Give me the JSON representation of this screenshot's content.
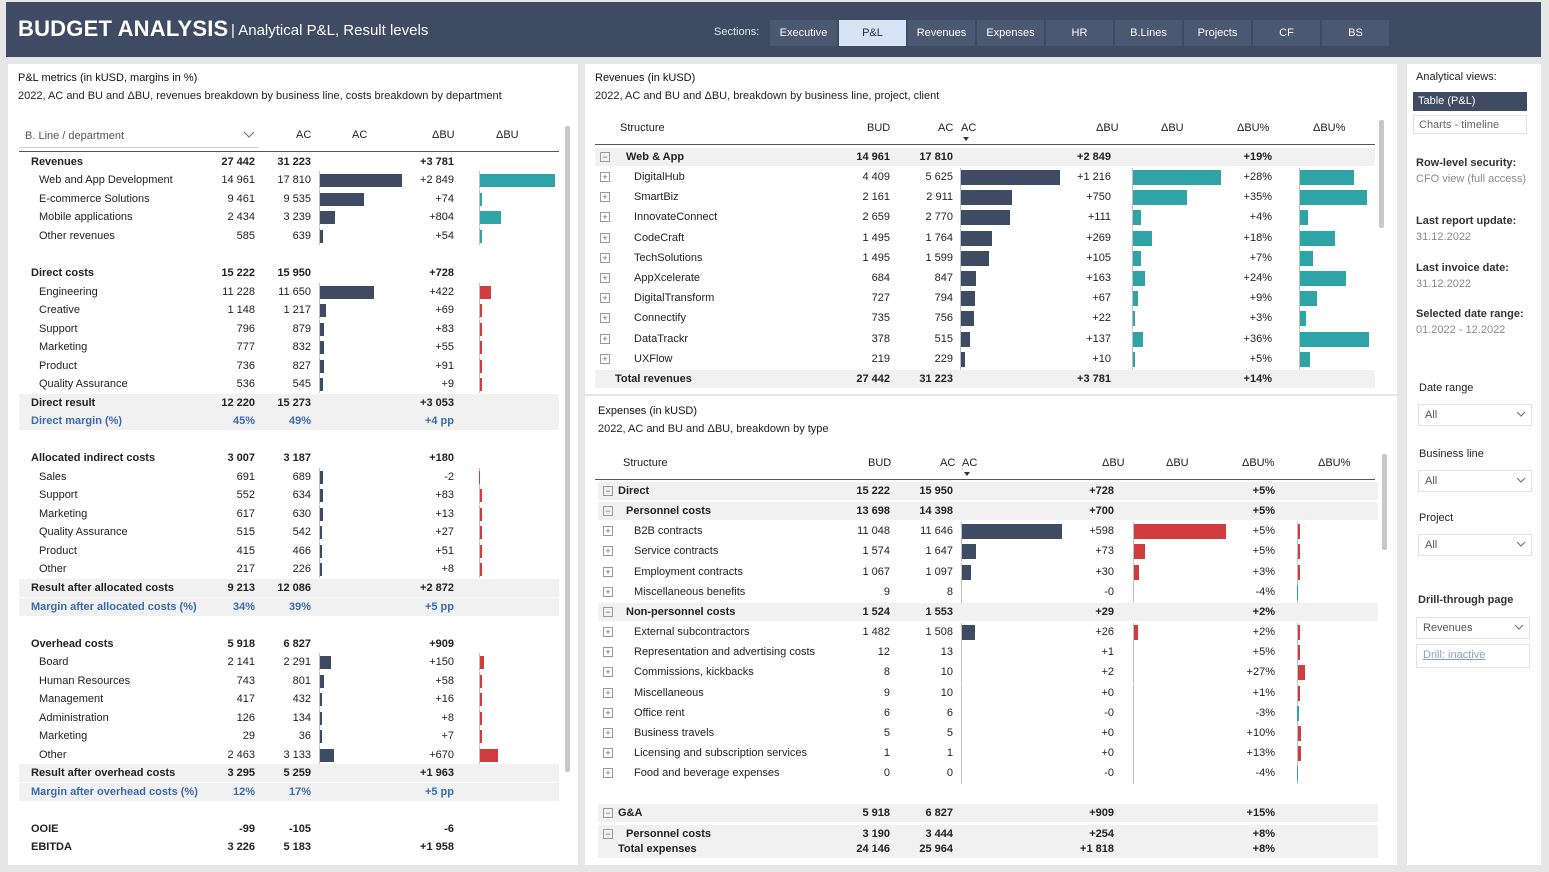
{
  "header": {
    "title": "BUDGET ANALYSIS",
    "subtitle": "| Analytical P&L, Result levels",
    "sections_label": "Sections:",
    "tabs": [
      "Executive",
      "P&L",
      "Revenues",
      "Expenses",
      "HR",
      "B.Lines",
      "Projects",
      "CF",
      "BS"
    ],
    "active_tab": "P&L"
  },
  "colors": {
    "header_bg": "#3e4b62",
    "bar_dark": "#3e4b62",
    "teal": "#2ea4a7",
    "red": "#d13d3d",
    "blue_text": "#3a6bb0"
  },
  "pl": {
    "title": "P&L metrics (in kUSD, margins in %)",
    "subtitle": "2022, AC and BU and ΔBU, revenues breakdown by business line, costs breakdown by department",
    "filter_label": "B. Line / department",
    "col_ac": "AC",
    "col_ac2": "AC",
    "col_dbu": "ΔBU",
    "col_dbu2": "ΔBU",
    "rows": [
      {
        "label": "Revenues",
        "bu": "27 442",
        "ac": "31 223",
        "d": "+3 781",
        "type": "bold"
      },
      {
        "label": "Web and App Development",
        "bu": "14 961",
        "ac": "17 810",
        "d": "+2 849",
        "acv": 17810,
        "dv": 2849,
        "pos": "good"
      },
      {
        "label": "E-commerce Solutions",
        "bu": "9 461",
        "ac": "9 535",
        "d": "+74",
        "acv": 9535,
        "dv": 74,
        "pos": "good"
      },
      {
        "label": "Mobile applications",
        "bu": "2 434",
        "ac": "3 239",
        "d": "+804",
        "acv": 3239,
        "dv": 804,
        "pos": "good"
      },
      {
        "label": "Other revenues",
        "bu": "585",
        "ac": "639",
        "d": "+54",
        "acv": 639,
        "dv": 54,
        "pos": "good"
      },
      {
        "label": "Direct costs",
        "bu": "15 222",
        "ac": "15 950",
        "d": "+728",
        "type": "bold"
      },
      {
        "label": "Engineering",
        "bu": "11 228",
        "ac": "11 650",
        "d": "+422",
        "acv": 11650,
        "dv": 422,
        "pos": "bad"
      },
      {
        "label": "Creative",
        "bu": "1 148",
        "ac": "1 217",
        "d": "+69",
        "acv": 1217,
        "dv": 69,
        "pos": "bad"
      },
      {
        "label": "Support",
        "bu": "796",
        "ac": "879",
        "d": "+83",
        "acv": 879,
        "dv": 83,
        "pos": "bad"
      },
      {
        "label": "Marketing",
        "bu": "777",
        "ac": "832",
        "d": "+55",
        "acv": 832,
        "dv": 55,
        "pos": "bad"
      },
      {
        "label": "Product",
        "bu": "736",
        "ac": "827",
        "d": "+91",
        "acv": 827,
        "dv": 91,
        "pos": "bad"
      },
      {
        "label": "Quality Assurance",
        "bu": "536",
        "ac": "545",
        "d": "+9",
        "acv": 545,
        "dv": 9,
        "pos": "bad"
      },
      {
        "label": "Direct result",
        "bu": "12 220",
        "ac": "15 273",
        "d": "+3 053",
        "type": "result"
      },
      {
        "label": "Direct margin (%)",
        "bu": "45%",
        "ac": "49%",
        "d": "+4 pp",
        "type": "margin"
      },
      {
        "label": "Allocated indirect costs",
        "bu": "3 007",
        "ac": "3 187",
        "d": "+180",
        "type": "bold"
      },
      {
        "label": "Sales",
        "bu": "691",
        "ac": "689",
        "d": "-2",
        "acv": 689,
        "dv": -2,
        "pos": "bad"
      },
      {
        "label": "Support",
        "bu": "552",
        "ac": "634",
        "d": "+83",
        "acv": 634,
        "dv": 83,
        "pos": "bad"
      },
      {
        "label": "Marketing",
        "bu": "617",
        "ac": "630",
        "d": "+13",
        "acv": 630,
        "dv": 13,
        "pos": "bad"
      },
      {
        "label": "Quality Assurance",
        "bu": "515",
        "ac": "542",
        "d": "+27",
        "acv": 542,
        "dv": 27,
        "pos": "bad"
      },
      {
        "label": "Product",
        "bu": "415",
        "ac": "466",
        "d": "+51",
        "acv": 466,
        "dv": 51,
        "pos": "bad"
      },
      {
        "label": "Other",
        "bu": "217",
        "ac": "226",
        "d": "+8",
        "acv": 226,
        "dv": 8,
        "pos": "bad"
      },
      {
        "label": "Result after allocated costs",
        "bu": "9 213",
        "ac": "12 086",
        "d": "+2 872",
        "type": "result"
      },
      {
        "label": "Margin after allocated costs (%)",
        "bu": "34%",
        "ac": "39%",
        "d": "+5 pp",
        "type": "margin"
      },
      {
        "label": "Overhead costs",
        "bu": "5 918",
        "ac": "6 827",
        "d": "+909",
        "type": "bold"
      },
      {
        "label": "Board",
        "bu": "2 141",
        "ac": "2 291",
        "d": "+150",
        "acv": 2291,
        "dv": 150,
        "pos": "bad"
      },
      {
        "label": "Human Resources",
        "bu": "743",
        "ac": "801",
        "d": "+58",
        "acv": 801,
        "dv": 58,
        "pos": "bad"
      },
      {
        "label": "Management",
        "bu": "417",
        "ac": "432",
        "d": "+16",
        "acv": 432,
        "dv": 16,
        "pos": "bad"
      },
      {
        "label": "Administration",
        "bu": "126",
        "ac": "134",
        "d": "+8",
        "acv": 134,
        "dv": 8,
        "pos": "bad"
      },
      {
        "label": "Marketing",
        "bu": "29",
        "ac": "36",
        "d": "+7",
        "acv": 36,
        "dv": 7,
        "pos": "bad"
      },
      {
        "label": "Other",
        "bu": "2 463",
        "ac": "3 133",
        "d": "+670",
        "acv": 3133,
        "dv": 670,
        "pos": "bad"
      },
      {
        "label": "Result after overhead costs",
        "bu": "3 295",
        "ac": "5 259",
        "d": "+1 963",
        "type": "result"
      },
      {
        "label": "Margin after overhead costs (%)",
        "bu": "12%",
        "ac": "17%",
        "d": "+5 pp",
        "type": "margin"
      },
      {
        "label": "OOIE",
        "bu": "-99",
        "ac": "-105",
        "d": "-6",
        "type": "bold"
      },
      {
        "label": "EBITDA",
        "bu": "3 226",
        "ac": "5 183",
        "d": "+1 958",
        "type": "bold"
      }
    ]
  },
  "revenues": {
    "title": "Revenues (in kUSD)",
    "subtitle": "2022, AC and BU and ΔBU, breakdown by business line, project, client",
    "cols": [
      "Structure",
      "BUD",
      "AC",
      "AC",
      "ΔBU",
      "ΔBU",
      "ΔBU%",
      "ΔBU%"
    ],
    "group": {
      "label": "Web & App",
      "bu": "14 961",
      "ac": "17 810",
      "d": "+2 849",
      "p": "+19%"
    },
    "rows": [
      {
        "label": "DigitalHub",
        "bu": "4 409",
        "ac": "5 625",
        "d": "+1 216",
        "p": "+28%",
        "acv": 5625,
        "dv": 1216,
        "pv": 28
      },
      {
        "label": "SmartBiz",
        "bu": "2 161",
        "ac": "2 911",
        "d": "+750",
        "p": "+35%",
        "acv": 2911,
        "dv": 750,
        "pv": 35
      },
      {
        "label": "InnovateConnect",
        "bu": "2 659",
        "ac": "2 770",
        "d": "+111",
        "p": "+4%",
        "acv": 2770,
        "dv": 111,
        "pv": 4
      },
      {
        "label": "CodeCraft",
        "bu": "1 495",
        "ac": "1 764",
        "d": "+269",
        "p": "+18%",
        "acv": 1764,
        "dv": 269,
        "pv": 18
      },
      {
        "label": "TechSolutions",
        "bu": "1 495",
        "ac": "1 599",
        "d": "+105",
        "p": "+7%",
        "acv": 1599,
        "dv": 105,
        "pv": 7
      },
      {
        "label": "AppXcelerate",
        "bu": "684",
        "ac": "847",
        "d": "+163",
        "p": "+24%",
        "acv": 847,
        "dv": 163,
        "pv": 24
      },
      {
        "label": "DigitalTransform",
        "bu": "727",
        "ac": "794",
        "d": "+67",
        "p": "+9%",
        "acv": 794,
        "dv": 67,
        "pv": 9
      },
      {
        "label": "Connectify",
        "bu": "735",
        "ac": "756",
        "d": "+22",
        "p": "+3%",
        "acv": 756,
        "dv": 22,
        "pv": 3
      },
      {
        "label": "DataTrackr",
        "bu": "378",
        "ac": "515",
        "d": "+137",
        "p": "+36%",
        "acv": 515,
        "dv": 137,
        "pv": 36
      },
      {
        "label": "UXFlow",
        "bu": "219",
        "ac": "229",
        "d": "+10",
        "p": "+5%",
        "acv": 229,
        "dv": 10,
        "pv": 5
      }
    ],
    "total": {
      "label": "Total revenues",
      "bu": "27 442",
      "ac": "31 223",
      "d": "+3 781",
      "p": "+14%"
    }
  },
  "expenses": {
    "title": "Expenses (in kUSD)",
    "subtitle": "2022, AC and BU and ΔBU, breakdown by type",
    "cols": [
      "Structure",
      "BUD",
      "AC",
      "AC",
      "ΔBU",
      "ΔBU",
      "ΔBU%",
      "ΔBU%"
    ],
    "rows": [
      {
        "label": "Direct",
        "bu": "15 222",
        "ac": "15 950",
        "d": "+728",
        "p": "+5%",
        "type": "g1"
      },
      {
        "label": "Personnel costs",
        "bu": "13 698",
        "ac": "14 398",
        "d": "+700",
        "p": "+5%",
        "type": "g2"
      },
      {
        "label": "B2B contracts",
        "bu": "11 048",
        "ac": "11 646",
        "d": "+598",
        "p": "+5%",
        "acv": 11646,
        "dv": 598,
        "pv": 5
      },
      {
        "label": "Service contracts",
        "bu": "1 574",
        "ac": "1 647",
        "d": "+73",
        "p": "+5%",
        "acv": 1647,
        "dv": 73,
        "pv": 5
      },
      {
        "label": "Employment contracts",
        "bu": "1 067",
        "ac": "1 097",
        "d": "+30",
        "p": "+3%",
        "acv": 1097,
        "dv": 30,
        "pv": 3
      },
      {
        "label": "Miscellaneous benefits",
        "bu": "9",
        "ac": "8",
        "d": "-0",
        "p": "-4%",
        "acv": 8,
        "dv": 0,
        "pv": -4
      },
      {
        "label": "Non-personnel costs",
        "bu": "1 524",
        "ac": "1 553",
        "d": "+29",
        "p": "+2%",
        "type": "g2"
      },
      {
        "label": "External subcontractors",
        "bu": "1 482",
        "ac": "1 508",
        "d": "+26",
        "p": "+2%",
        "acv": 1508,
        "dv": 26,
        "pv": 2
      },
      {
        "label": "Representation and advertising costs",
        "bu": "12",
        "ac": "13",
        "d": "+1",
        "p": "+5%",
        "acv": 13,
        "dv": 1,
        "pv": 5
      },
      {
        "label": "Commissions, kickbacks",
        "bu": "8",
        "ac": "10",
        "d": "+2",
        "p": "+27%",
        "acv": 10,
        "dv": 2,
        "pv": 27
      },
      {
        "label": "Miscellaneous",
        "bu": "9",
        "ac": "10",
        "d": "+0",
        "p": "+1%",
        "acv": 10,
        "dv": 0,
        "pv": 1
      },
      {
        "label": "Office rent",
        "bu": "6",
        "ac": "6",
        "d": "-0",
        "p": "-3%",
        "acv": 6,
        "dv": 0,
        "pv": -3
      },
      {
        "label": "Business travels",
        "bu": "5",
        "ac": "5",
        "d": "+0",
        "p": "+10%",
        "acv": 5,
        "dv": 0,
        "pv": 10
      },
      {
        "label": "Licensing and subscription services",
        "bu": "1",
        "ac": "1",
        "d": "+0",
        "p": "+13%",
        "acv": 1,
        "dv": 0,
        "pv": 13
      },
      {
        "label": "Food and beverage expenses",
        "bu": "0",
        "ac": "0",
        "d": "-0",
        "p": "-4%",
        "acv": 0,
        "dv": 0,
        "pv": -4
      },
      {
        "label": "",
        "type": "blank"
      },
      {
        "label": "G&A",
        "bu": "5 918",
        "ac": "6 827",
        "d": "+909",
        "p": "+15%",
        "type": "g1"
      },
      {
        "label": "Personnel costs",
        "bu": "3 190",
        "ac": "3 444",
        "d": "+254",
        "p": "+8%",
        "type": "g2"
      }
    ],
    "total": {
      "label": "Total expenses",
      "bu": "24 146",
      "ac": "25 964",
      "d": "+1 818",
      "p": "+8%"
    }
  },
  "sidebar": {
    "views_label": "Analytical views:",
    "view_table": "Table (P&L)",
    "view_charts": "Charts - timeline",
    "security_label": "Row-level security:",
    "security_value": "CFO view (full access)",
    "report_label": "Last report update:",
    "report_value": "31.12.2022",
    "invoice_label": "Last invoice date:",
    "invoice_value": "31.12.2022",
    "range_label": "Selected date range:",
    "range_value": "01.2022 - 12.2022",
    "f_date_label": "Date range",
    "f_date_value": "All",
    "f_bl_label": "Business line",
    "f_bl_value": "All",
    "f_proj_label": "Project",
    "f_proj_value": "All",
    "drill_label": "Drill-through page",
    "drill_value": "Revenues",
    "drill_status": "Drill: inactive"
  }
}
